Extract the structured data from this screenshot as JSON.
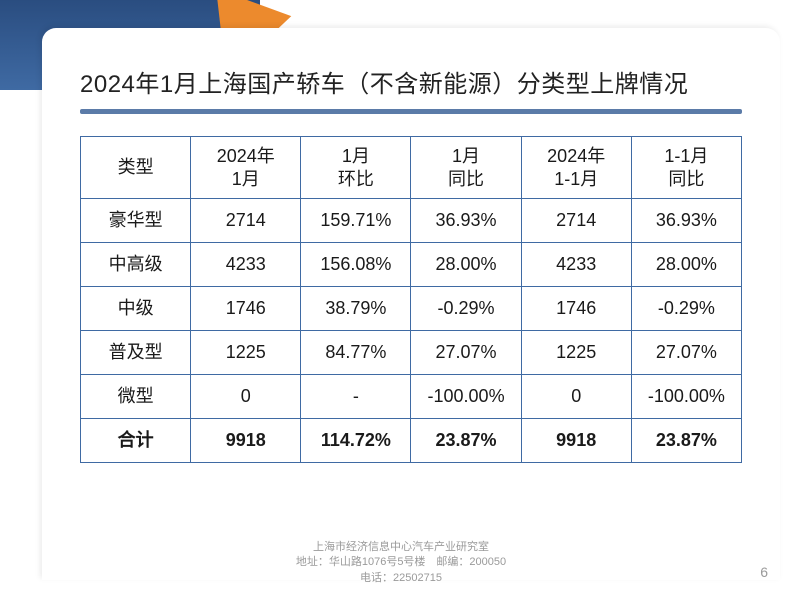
{
  "title": "2024年1月上海国产轿车（不含新能源）分类型上牌情况",
  "colors": {
    "blue_header": "#3f6aa3",
    "blue_underline": "#5b7ba8",
    "orange_accent": "#ec8a2d",
    "border": "#3f6aa3",
    "text": "#1a1a1a",
    "muted": "#9a9a9a",
    "background": "#ffffff"
  },
  "table": {
    "columns": [
      "类型",
      "2024年\n1月",
      "1月\n环比",
      "1月\n同比",
      "2024年\n1-1月",
      "1-1月\n同比"
    ],
    "rows": [
      [
        "豪华型",
        "2714",
        "159.71%",
        "36.93%",
        "2714",
        "36.93%"
      ],
      [
        "中高级",
        "4233",
        "156.08%",
        "28.00%",
        "4233",
        "28.00%"
      ],
      [
        "中级",
        "1746",
        "38.79%",
        "-0.29%",
        "1746",
        "-0.29%"
      ],
      [
        "普及型",
        "1225",
        "84.77%",
        "27.07%",
        "1225",
        "27.07%"
      ],
      [
        "微型",
        "0",
        "-",
        "-100.00%",
        "0",
        "-100.00%"
      ]
    ],
    "total_row": [
      "合计",
      "9918",
      "114.72%",
      "23.87%",
      "9918",
      "23.87%"
    ],
    "header_fontsize": 18,
    "cell_fontsize": 18,
    "border_width": 1.5
  },
  "footer": {
    "line1": "上海市经济信息中心汽车产业研究室",
    "line2": "地址：华山路1076号5号楼　邮编：200050",
    "line3": "电话：22502715"
  },
  "page_number": "6"
}
